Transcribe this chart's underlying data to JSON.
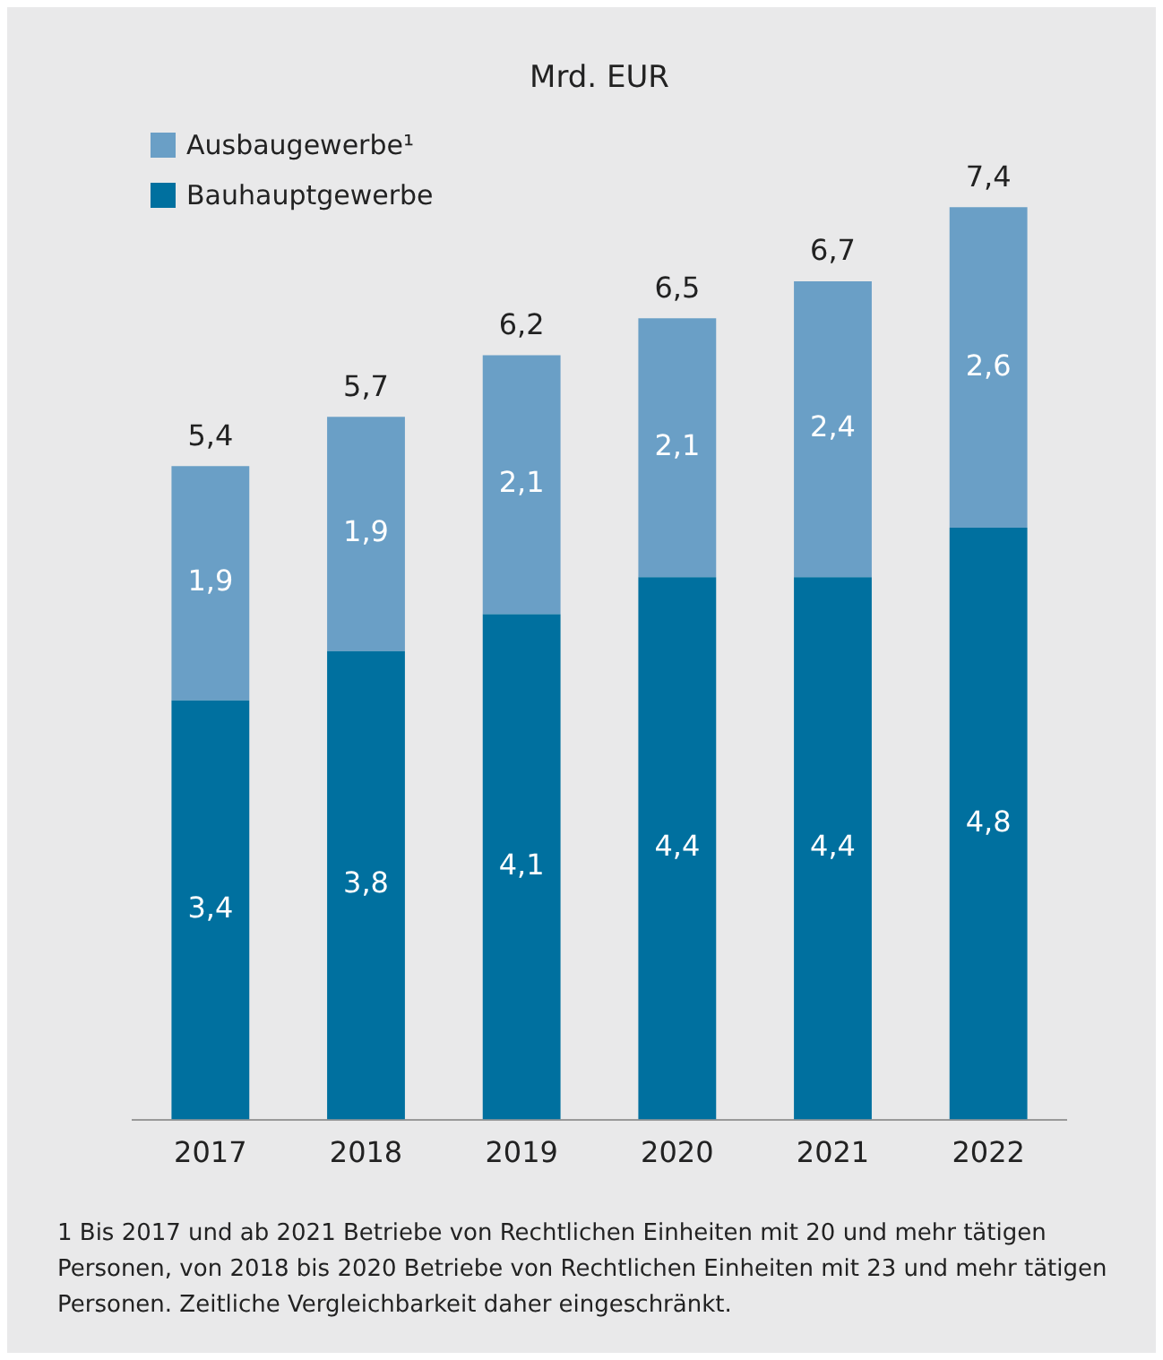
{
  "chart_data": {
    "type": "bar",
    "title": "Mrd. EUR",
    "stacked": true,
    "legend": "top left",
    "grid": false,
    "categories": [
      "2017",
      "2018",
      "2019",
      "2020",
      "2021",
      "2022"
    ],
    "series": [
      {
        "name": "Bauhauptgewerbe",
        "color": "#00709f",
        "values": [
          3.4,
          3.8,
          4.1,
          4.4,
          4.4,
          4.8
        ],
        "value_labels": [
          "3,4",
          "3,8",
          "4,1",
          "4,4",
          "4,4",
          "4,8"
        ]
      },
      {
        "name": "Ausbaugewerbe¹",
        "color": "#6a9fc6",
        "values": [
          1.9,
          1.9,
          2.1,
          2.1,
          2.4,
          2.6
        ],
        "value_labels": [
          "1,9",
          "1,9",
          "2,1",
          "2,1",
          "2,4",
          "2,6"
        ]
      }
    ],
    "totals": [
      "5,4",
      "5,7",
      "6,2",
      "6,5",
      "6,7",
      "7,4"
    ],
    "annotations": [
      "1 Bis 2017 und ab 2021 Betriebe von Rechtlichen Einheiten mit 20 und mehr tätigen Personen, von 2018 bis 2020 Betriebe von Rechtlichen Einheiten mit 23 und mehr tätigen Personen. Zeitliche Vergleichbarkeit daher eingeschränkt."
    ]
  }
}
